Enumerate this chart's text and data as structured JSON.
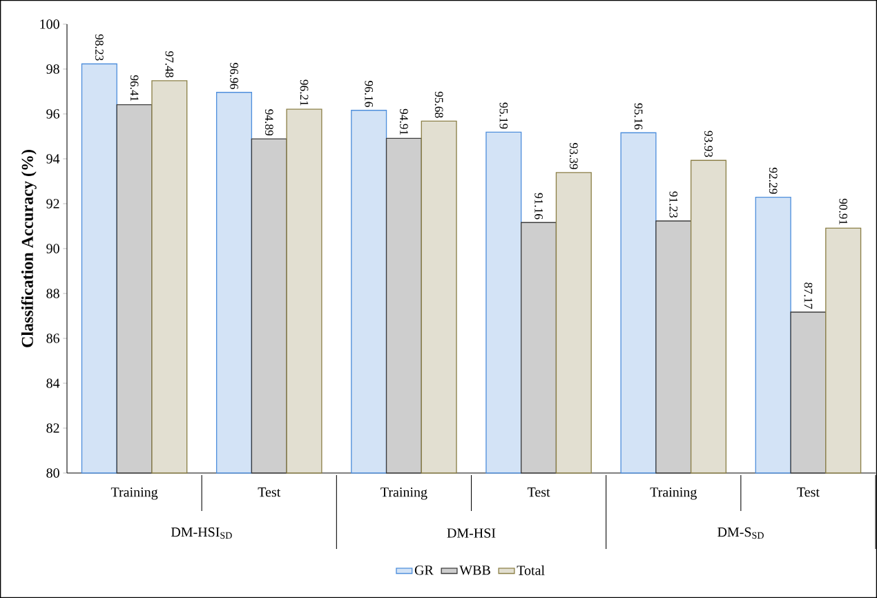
{
  "chart_data": {
    "type": "bar",
    "ylabel": "Classification Accuracy (%)",
    "categories": [
      "Training",
      "Test",
      "Training",
      "Test",
      "Training",
      "Test"
    ],
    "series": [
      {
        "name": "GR",
        "color": "#4f8fdc",
        "values": [
          98.23,
          96.96,
          96.16,
          95.19,
          95.16,
          92.29
        ]
      },
      {
        "name": "WBB",
        "color": "#3c3c3c",
        "values": [
          96.41,
          94.89,
          94.91,
          91.16,
          91.23,
          87.17
        ]
      },
      {
        "name": "Total",
        "color": "#8c8048",
        "values": [
          97.48,
          96.21,
          95.68,
          93.39,
          93.93,
          90.91
        ]
      }
    ],
    "annotations": [
      "DM-HSI$_{SD}$",
      "DM-HSI",
      "DM-S$_{SD}$"
    ],
    "ylim": [
      80,
      100
    ],
    "yticks": [
      80,
      82,
      84,
      86,
      88,
      90,
      92,
      94,
      96,
      98,
      100
    ],
    "data_labels": true,
    "legend": "bottom",
    "grid": false
  }
}
